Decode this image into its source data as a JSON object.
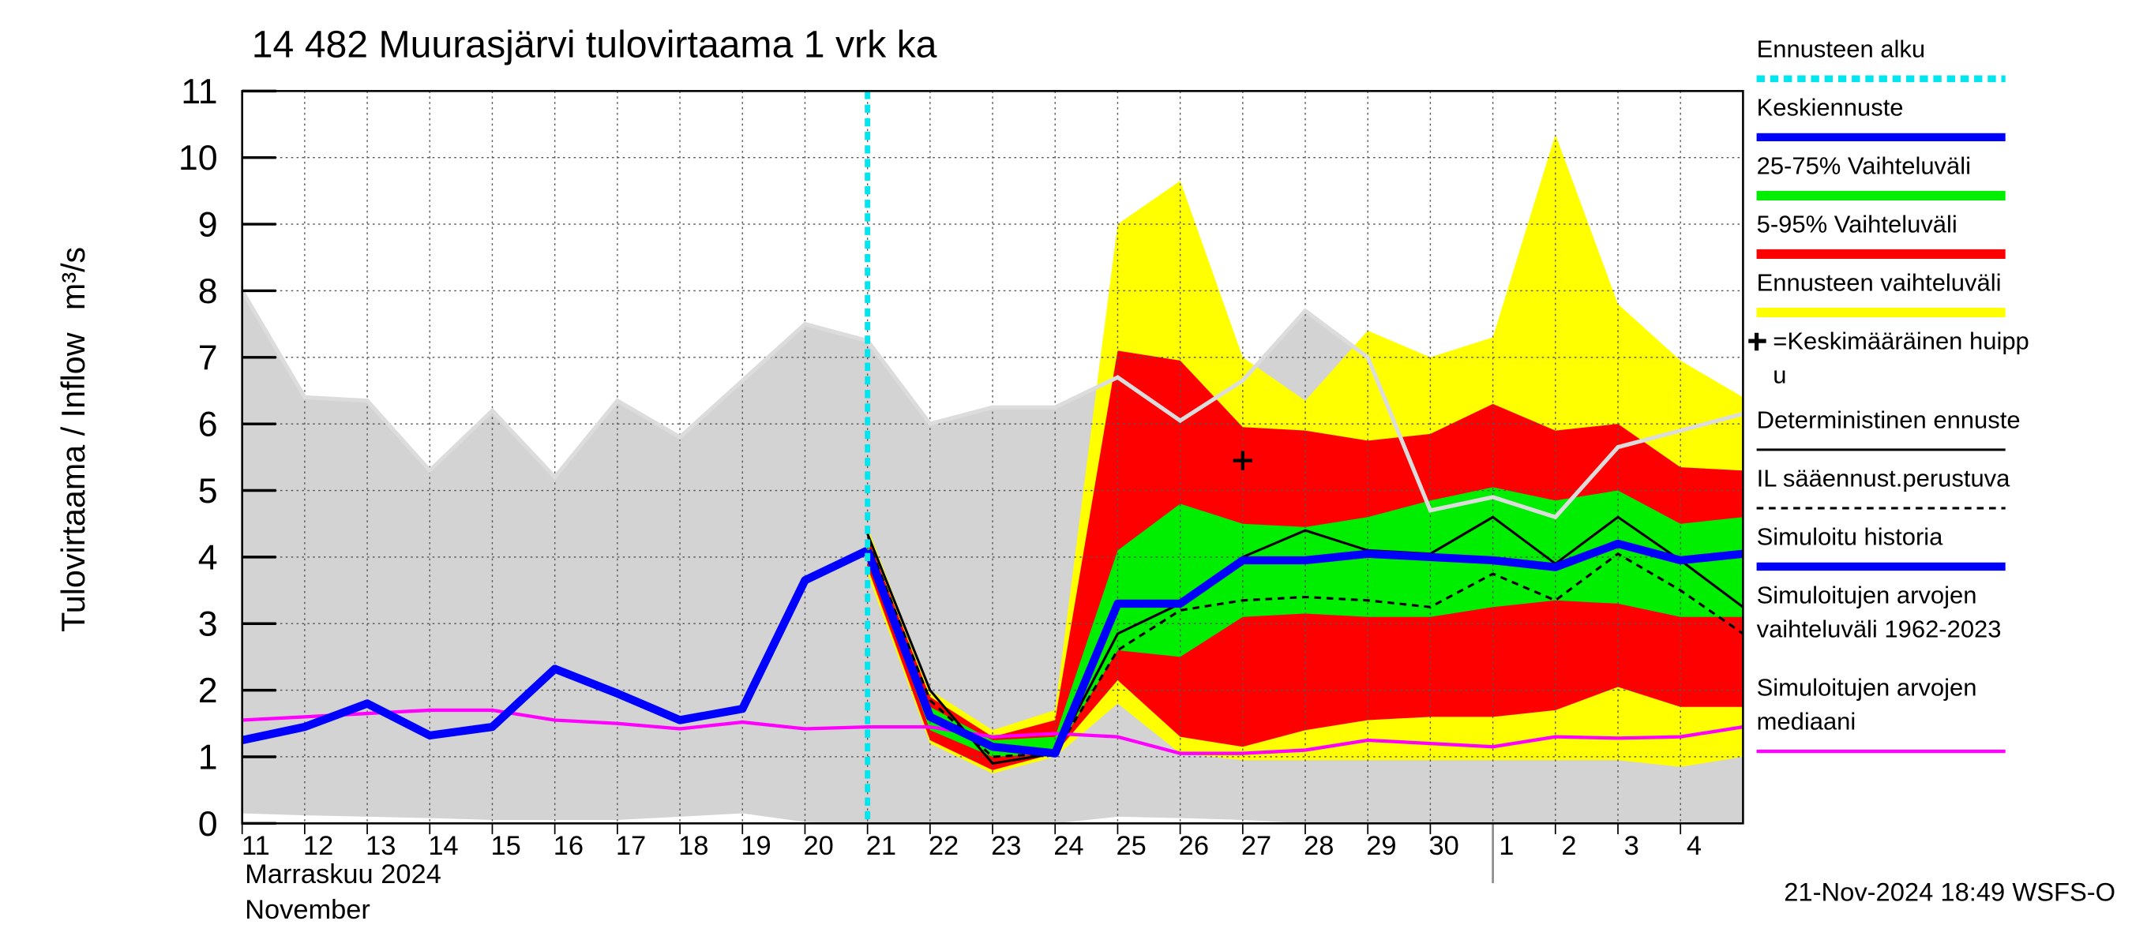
{
  "chart_data": {
    "type": "band",
    "title": "14 482 Muurasjärvi tulovirtaama 1 vrk ka",
    "y_label": "Tulovirtaama / Inflow",
    "y_unit": "m³/s",
    "x_sublabels": [
      "Marraskuu 2024",
      "November"
    ],
    "footer": "21-Nov-2024 18:49 WSFS-O",
    "categories": [
      "11",
      "12",
      "13",
      "14",
      "15",
      "16",
      "17",
      "18",
      "19",
      "20",
      "21",
      "22",
      "23",
      "24",
      "25",
      "26",
      "27",
      "28",
      "29",
      "30",
      "1",
      "2",
      "3",
      "4",
      null
    ],
    "ylim": [
      0,
      11
    ],
    "yticks": [
      0,
      1,
      2,
      3,
      4,
      5,
      6,
      7,
      8,
      9,
      10,
      11
    ],
    "grid": true,
    "series": [
      {
        "name": "Ennusteen alku",
        "kind": "vline",
        "color": "#00e5ee",
        "x": 10
      },
      {
        "name": "Keskiennuste",
        "kind": "line",
        "style": "thick",
        "color": "#0000ff",
        "values": [
          null,
          null,
          null,
          null,
          null,
          null,
          null,
          null,
          null,
          null,
          4.1,
          1.6,
          1.15,
          1.05,
          3.3,
          3.3,
          3.95,
          3.95,
          4.05,
          4.0,
          3.95,
          3.85,
          4.2,
          3.95,
          4.05
        ]
      },
      {
        "name": "25-75% Vaihteluväli",
        "kind": "band",
        "color": "#00ee00",
        "upper": [
          null,
          null,
          null,
          null,
          null,
          null,
          null,
          null,
          null,
          null,
          4.2,
          1.75,
          1.25,
          1.3,
          4.1,
          4.8,
          4.5,
          4.45,
          4.6,
          4.85,
          5.05,
          4.85,
          5.0,
          4.5,
          4.6
        ],
        "lower": [
          null,
          null,
          null,
          null,
          null,
          null,
          null,
          null,
          null,
          null,
          4.0,
          1.4,
          1.0,
          1.05,
          2.6,
          2.5,
          3.1,
          3.15,
          3.1,
          3.1,
          3.25,
          3.35,
          3.3,
          3.1,
          3.1
        ]
      },
      {
        "name": "5-95% Vaihteluväli",
        "kind": "band",
        "color": "#ff0000",
        "upper": [
          null,
          null,
          null,
          null,
          null,
          null,
          null,
          null,
          null,
          null,
          4.3,
          1.9,
          1.3,
          1.55,
          7.1,
          6.95,
          5.95,
          5.9,
          5.75,
          5.85,
          6.3,
          5.9,
          6.0,
          5.35,
          5.3
        ],
        "lower": [
          null,
          null,
          null,
          null,
          null,
          null,
          null,
          null,
          null,
          null,
          3.85,
          1.25,
          0.8,
          1.05,
          2.15,
          1.3,
          1.15,
          1.4,
          1.55,
          1.6,
          1.6,
          1.7,
          2.05,
          1.75,
          1.75
        ]
      },
      {
        "name": "Ennusteen vaihteluväli",
        "kind": "band",
        "color": "#ffff00",
        "upper": [
          null,
          null,
          null,
          null,
          null,
          null,
          null,
          null,
          null,
          null,
          4.45,
          2.0,
          1.4,
          1.7,
          9.0,
          9.65,
          7.0,
          6.35,
          7.4,
          7.0,
          7.3,
          10.35,
          7.8,
          6.95,
          6.4
        ],
        "lower": [
          null,
          null,
          null,
          null,
          null,
          null,
          null,
          null,
          null,
          null,
          3.75,
          1.2,
          0.75,
          1.0,
          1.8,
          1.05,
          0.95,
          0.95,
          0.95,
          0.95,
          0.95,
          0.95,
          0.95,
          0.85,
          1.0
        ]
      },
      {
        "name": [
          "=Keskimääräinen huipp",
          "u"
        ],
        "kind": "marker",
        "color": "#000000",
        "x": 16,
        "y": 5.45
      },
      {
        "name": "Deterministinen ennuste",
        "kind": "line",
        "style": "thin",
        "color": "#000000",
        "values": [
          null,
          null,
          null,
          null,
          null,
          null,
          null,
          null,
          null,
          null,
          4.35,
          2.0,
          0.9,
          1.05,
          2.85,
          3.3,
          4.0,
          4.4,
          4.1,
          4.05,
          4.6,
          3.9,
          4.6,
          3.95,
          3.25
        ]
      },
      {
        "name": "IL sääennust.perustuva",
        "kind": "line",
        "style": "dashed",
        "color": "#000000",
        "values": [
          null,
          null,
          null,
          null,
          null,
          null,
          null,
          null,
          null,
          null,
          4.25,
          1.85,
          1.0,
          1.05,
          2.6,
          3.2,
          3.35,
          3.4,
          3.35,
          3.25,
          3.75,
          3.35,
          4.05,
          3.5,
          2.85
        ]
      },
      {
        "name": "Simuloitu historia",
        "kind": "line",
        "style": "thick",
        "color": "#0000ff",
        "values": [
          1.25,
          1.45,
          1.8,
          1.32,
          1.45,
          2.32,
          1.95,
          1.55,
          1.72,
          3.65,
          4.1,
          null,
          null,
          null,
          null,
          null,
          null,
          null,
          null,
          null,
          null,
          null,
          null,
          null,
          null
        ]
      },
      {
        "name": [
          "Simuloitujen arvojen",
          "vaihteluväli 1962-2023"
        ],
        "kind": "band",
        "color": "#d3d3d3",
        "edge_color": "#dcdcdc",
        "legend_sample": false,
        "upper": [
          8.0,
          6.4,
          6.35,
          5.3,
          6.2,
          5.2,
          6.35,
          5.8,
          6.65,
          7.5,
          7.25,
          6.0,
          6.25,
          6.25,
          6.7,
          6.05,
          6.65,
          7.7,
          7.0,
          4.7,
          4.9,
          4.6,
          5.65,
          5.9,
          6.15
        ],
        "lower": [
          0.15,
          0.12,
          0.1,
          0.08,
          0.05,
          0.05,
          0.05,
          0.1,
          0.15,
          0.02,
          0.0,
          0.0,
          0.0,
          0.0,
          0.1,
          0.08,
          0.05,
          0.0,
          0.0,
          0.0,
          0.0,
          0.0,
          0.0,
          0.0,
          0.0
        ]
      },
      {
        "name": [
          "Simuloitujen arvojen",
          "mediaani"
        ],
        "kind": "line",
        "style": "medium",
        "color": "#ff00ff",
        "values": [
          1.55,
          1.6,
          1.65,
          1.7,
          1.7,
          1.55,
          1.5,
          1.42,
          1.52,
          1.42,
          1.45,
          1.45,
          1.3,
          1.35,
          1.3,
          1.05,
          1.05,
          1.1,
          1.25,
          1.2,
          1.15,
          1.3,
          1.28,
          1.3,
          1.45
        ]
      }
    ]
  }
}
